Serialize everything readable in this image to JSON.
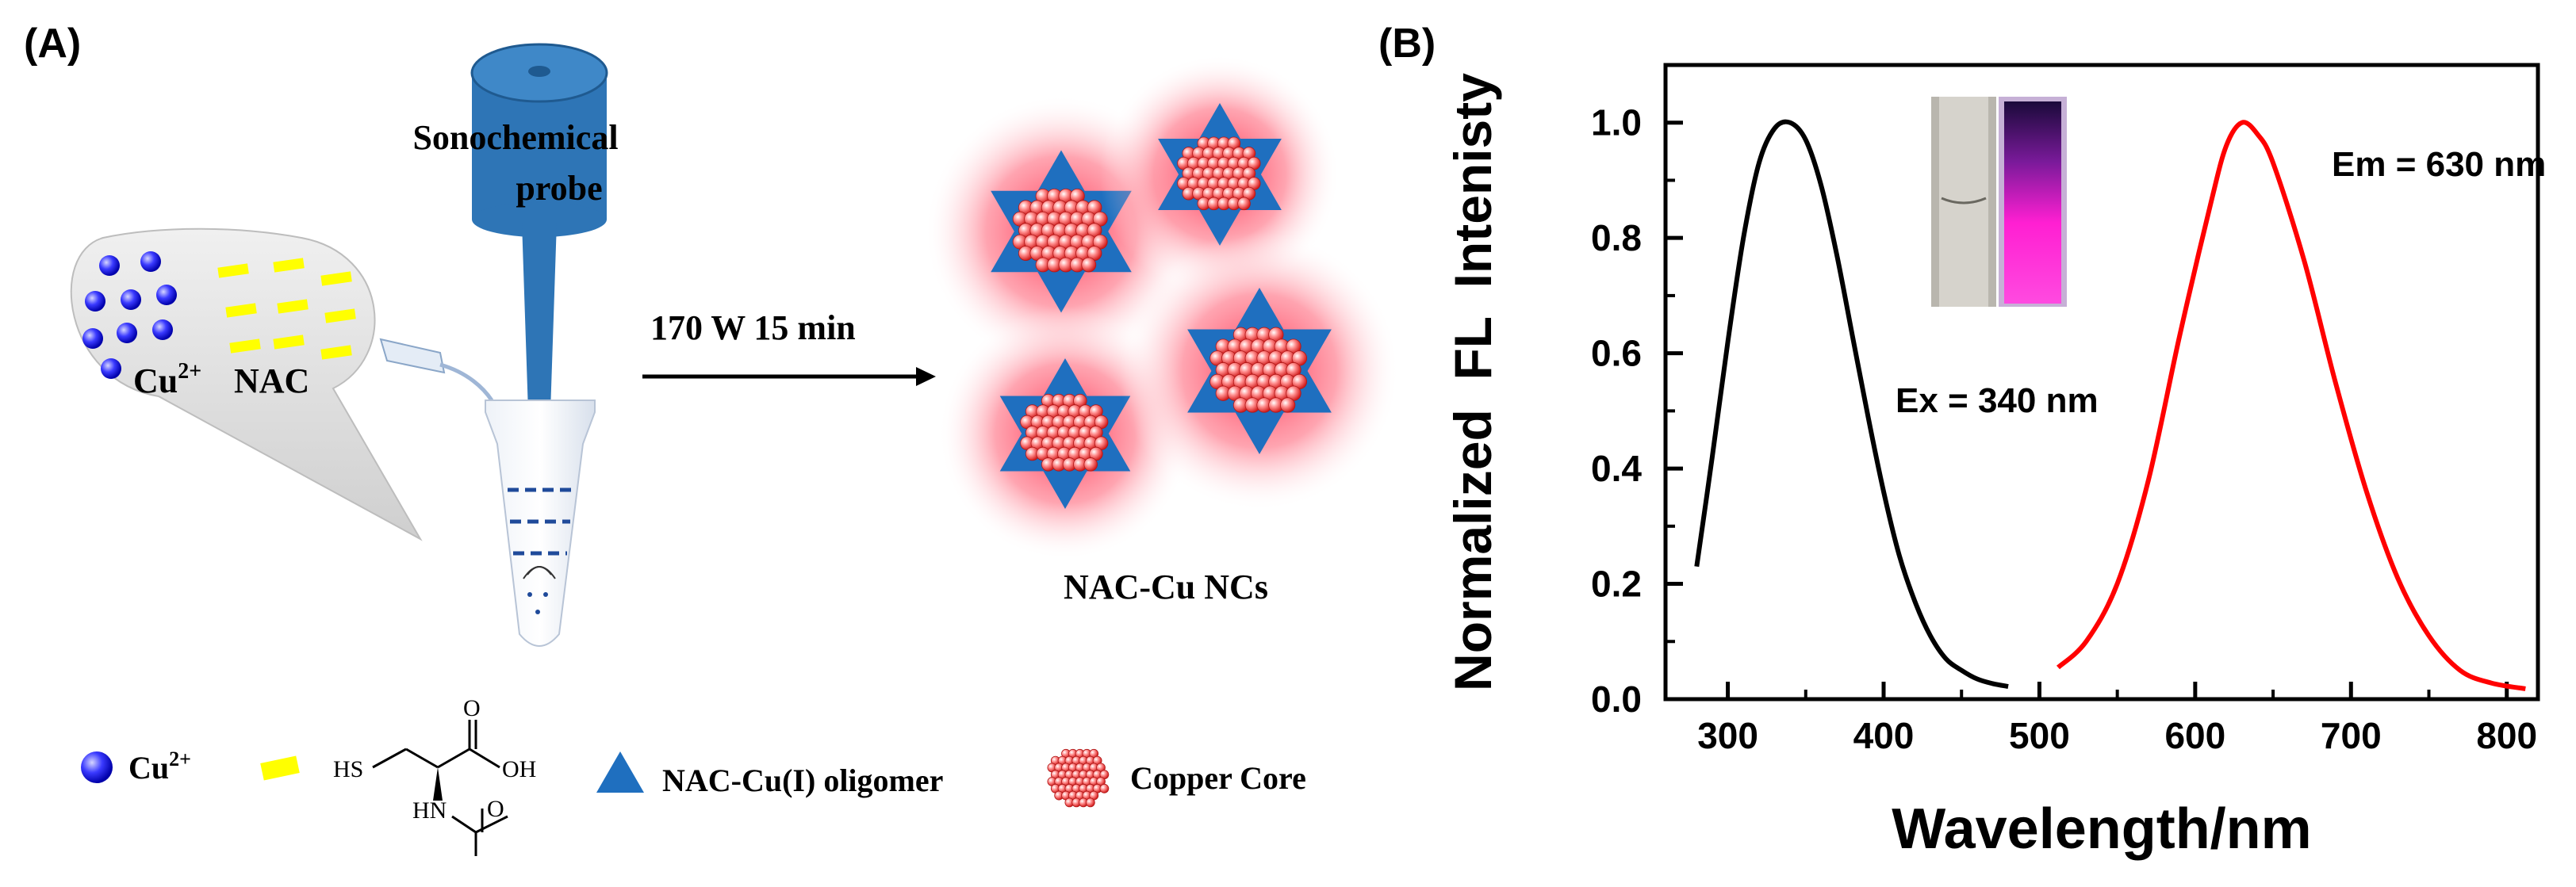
{
  "panel_a": {
    "label": "(A)",
    "probe_label_line1": "Sonochemical",
    "probe_label_line2": "probe",
    "bubble_cu": "Cu",
    "bubble_cu_sup": "2+",
    "bubble_nac": "NAC",
    "arrow_condition": "170 W 15 min",
    "product_label": "NAC-Cu NCs",
    "legend": {
      "cu_label": "Cu",
      "cu_sup": "2+",
      "struct_hs": "HS",
      "struct_o": "O",
      "struct_oh": "OH",
      "struct_hn": "HN",
      "struct_o2": "O",
      "oligomer_label": "NAC-Cu(I) oligomer",
      "core_label": "Copper Core"
    },
    "colors": {
      "probe": "#2e75b6",
      "cu_ion": "#2a2aff",
      "nac": "#ffff00",
      "oligomer": "#1f6fbf",
      "core": "#e83a3a",
      "glow": "#ff3a5a",
      "bubble": "#d9d9d9"
    }
  },
  "panel_b": {
    "label": "(B)",
    "ex_label": "Ex = 340 nm",
    "em_label": "Em = 630 nm",
    "colors": {
      "excitation": "#000000",
      "emission": "#ff0000",
      "cuvette_glow": "#ff00cc"
    }
  },
  "chart_data": {
    "type": "line",
    "xlabel": "Wavelength/nm",
    "ylabel": "Normalized  FL  Intenisty",
    "xlim": [
      260,
      820
    ],
    "ylim": [
      0,
      1.1
    ],
    "xticks": [
      300,
      400,
      500,
      600,
      700,
      800
    ],
    "yticks": [
      "0.0",
      "0.2",
      "0.4",
      "0.6",
      "0.8",
      "1.0"
    ],
    "series": [
      {
        "color": "#000000",
        "x": [
          280,
          290,
          300,
          310,
          320,
          330,
          340,
          350,
          360,
          370,
          380,
          390,
          400,
          410,
          420,
          430,
          440,
          450,
          460,
          470,
          480
        ],
        "y": [
          0.23,
          0.42,
          0.62,
          0.8,
          0.93,
          0.99,
          1.0,
          0.97,
          0.89,
          0.77,
          0.63,
          0.49,
          0.36,
          0.25,
          0.17,
          0.11,
          0.07,
          0.05,
          0.035,
          0.027,
          0.022
        ]
      },
      {
        "color": "#ff0000",
        "x": [
          512,
          530,
          550,
          570,
          590,
          610,
          620,
          630,
          640,
          650,
          670,
          690,
          710,
          730,
          750,
          770,
          790,
          812
        ],
        "y": [
          0.055,
          0.1,
          0.2,
          0.38,
          0.63,
          0.86,
          0.96,
          1.0,
          0.98,
          0.93,
          0.76,
          0.55,
          0.36,
          0.21,
          0.11,
          0.05,
          0.028,
          0.018
        ]
      }
    ]
  }
}
